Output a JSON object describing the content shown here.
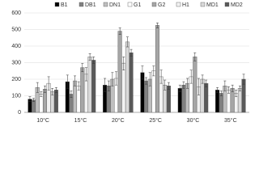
{
  "chart_data": {
    "type": "bar",
    "categories": [
      "10°C",
      "15°C",
      "20°C",
      "25°C",
      "30°C",
      "35°C"
    ],
    "series": [
      {
        "name": "B1",
        "color": "#000000",
        "values": [
          80,
          185,
          165,
          240,
          145,
          135
        ],
        "errors": [
          15,
          40,
          40,
          40,
          20,
          15
        ]
      },
      {
        "name": "DB1",
        "color": "#808080",
        "values": [
          75,
          110,
          160,
          190,
          165,
          115
        ],
        "errors": [
          10,
          20,
          30,
          20,
          20,
          15
        ]
      },
      {
        "name": "DN1",
        "color": "#bfbfbf",
        "values": [
          150,
          190,
          200,
          200,
          175,
          160
        ],
        "errors": [
          30,
          30,
          40,
          40,
          30,
          30
        ]
      },
      {
        "name": "G1",
        "color": "#ffffff",
        "values": [
          110,
          160,
          205,
          250,
          215,
          135
        ],
        "errors": [
          15,
          25,
          40,
          30,
          40,
          20
        ]
      },
      {
        "name": "G2",
        "color": "#a6a6a6",
        "values": [
          140,
          270,
          490,
          525,
          335,
          145
        ],
        "errors": [
          20,
          25,
          20,
          15,
          25,
          20
        ]
      },
      {
        "name": "H1",
        "color": "#f2f2f2",
        "values": [
          175,
          230,
          295,
          215,
          155,
          115
        ],
        "errors": [
          40,
          40,
          40,
          40,
          50,
          20
        ]
      },
      {
        "name": "MD1",
        "color": "#d9d9d9",
        "values": [
          125,
          335,
          425,
          165,
          200,
          145
        ],
        "errors": [
          20,
          20,
          30,
          30,
          25,
          15
        ]
      },
      {
        "name": "MD2",
        "color": "#595959",
        "values": [
          135,
          315,
          360,
          160,
          175,
          200
        ],
        "errors": [
          15,
          20,
          20,
          20,
          20,
          30
        ]
      }
    ],
    "ylim": [
      0,
      600
    ],
    "yticks": [
      0,
      100,
      200,
      300,
      400,
      500,
      600
    ],
    "grid": true
  }
}
